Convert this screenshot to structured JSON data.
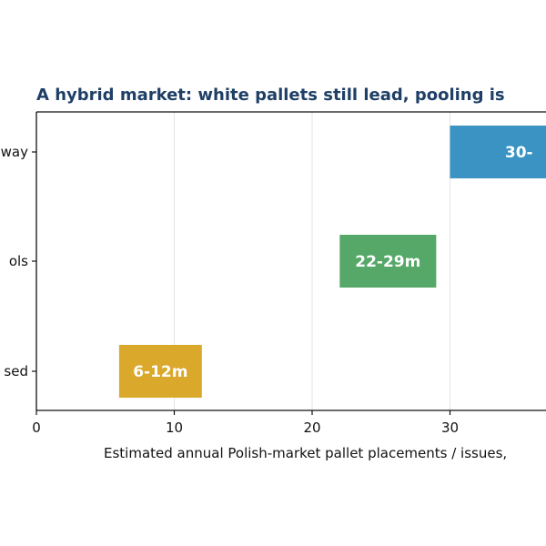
{
  "chart_data": {
    "type": "bar",
    "orientation": "horizontal-range",
    "title": "A hybrid market: white pallets still lead, pooling is",
    "xlabel": "Estimated annual Polish-market pallet placements / issues,",
    "ylabel": "",
    "xlim": [
      0,
      40
    ],
    "xticks": [
      "0",
      "10",
      "20",
      "30"
    ],
    "grid": "vertical",
    "categories": [
      "way",
      "ols",
      "sed"
    ],
    "bars": [
      {
        "category": "way",
        "start": 30,
        "end": 40,
        "label": "30-",
        "color": "#3a93c3"
      },
      {
        "category": "ols",
        "start": 22,
        "end": 29,
        "label": "22-29m",
        "color": "#55a868"
      },
      {
        "category": "sed",
        "start": 6,
        "end": 12,
        "label": "6-12m",
        "color": "#daa82a"
      }
    ]
  }
}
